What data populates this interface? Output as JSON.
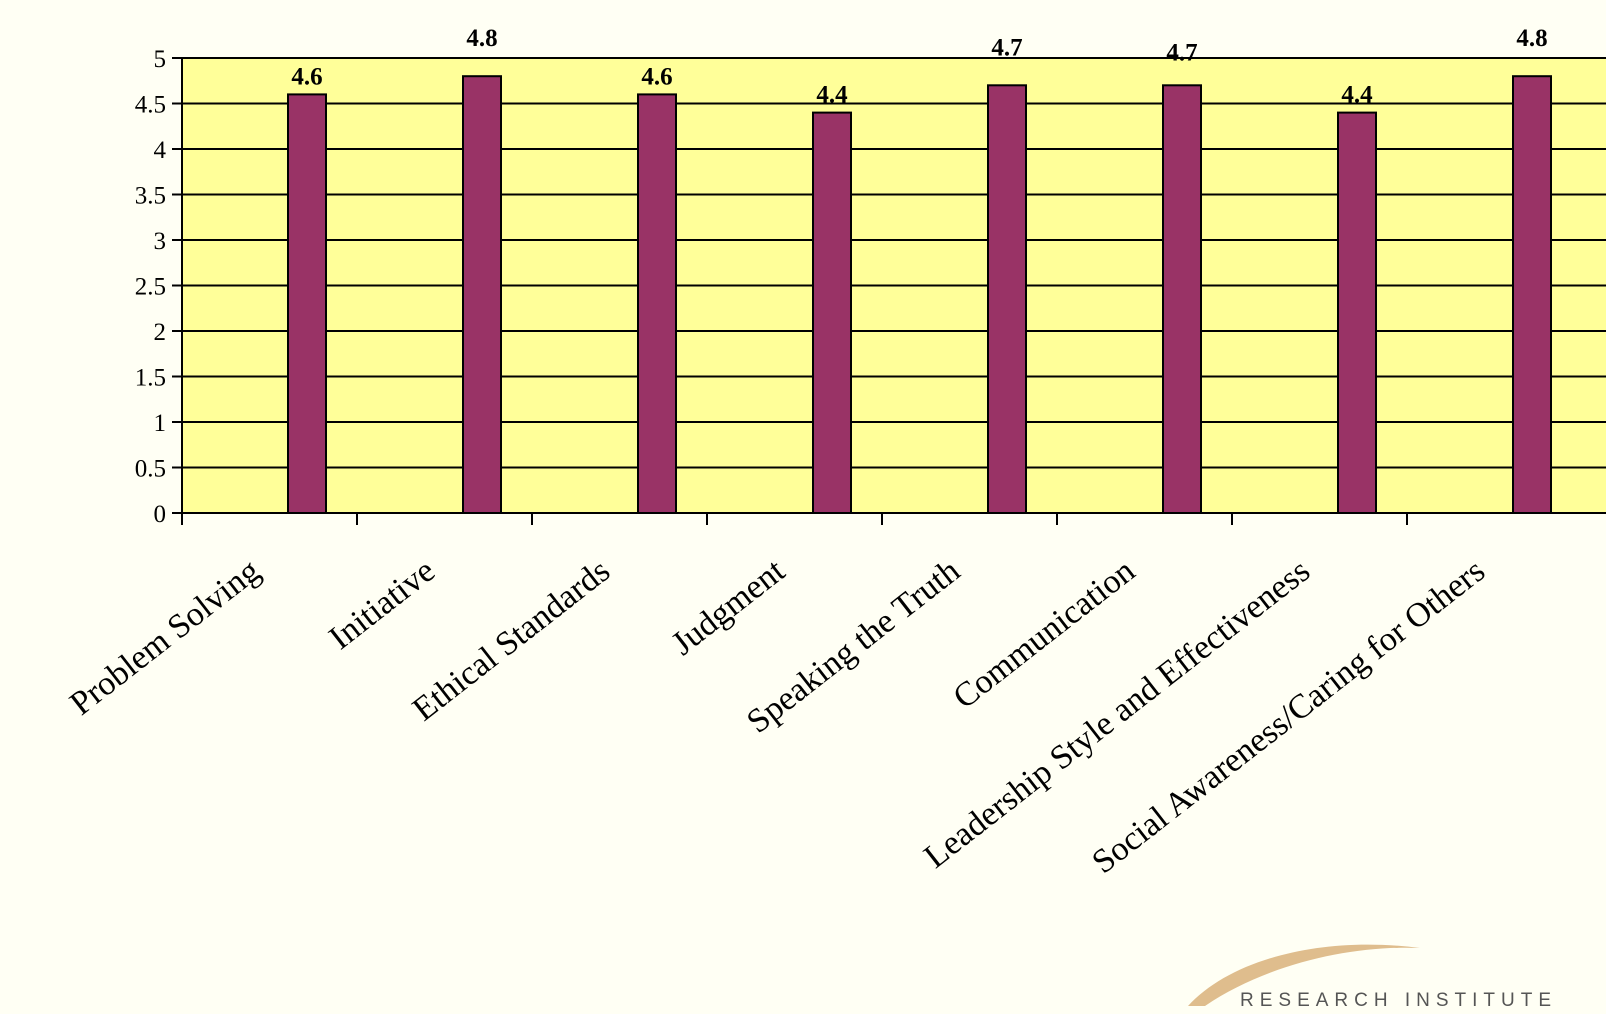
{
  "chart_data": {
    "type": "bar",
    "categories": [
      "Problem Solving",
      "Initiative",
      "Ethical Standards",
      "Judgment",
      "Speaking the Truth",
      "Communication",
      "Leadership Style and Effectiveness",
      "Social Awareness/Caring for Others"
    ],
    "values": [
      4.6,
      4.8,
      4.6,
      4.4,
      4.7,
      4.7,
      4.4,
      4.8
    ],
    "data_labels": [
      "4.6",
      "4.8",
      "4.6",
      "4.4",
      "4.7",
      "4.7",
      "4.4",
      "4.8"
    ],
    "ylim": [
      0,
      5
    ],
    "yticks": [
      0,
      0.5,
      1,
      1.5,
      2,
      2.5,
      3,
      3.5,
      4,
      4.5,
      5
    ],
    "ytick_labels": [
      "0",
      "0.5",
      "1",
      "1.5",
      "2",
      "2.5",
      "3",
      "3.5",
      "4",
      "4.5",
      "5"
    ],
    "grid": true,
    "legend": "none",
    "colors": {
      "bar": "#993366",
      "plot_background": "#ffff99",
      "page_background": "#fffff4",
      "logo_arc": "#d9b27a"
    }
  },
  "logo": {
    "text": "RESEARCH INSTITUTE"
  }
}
